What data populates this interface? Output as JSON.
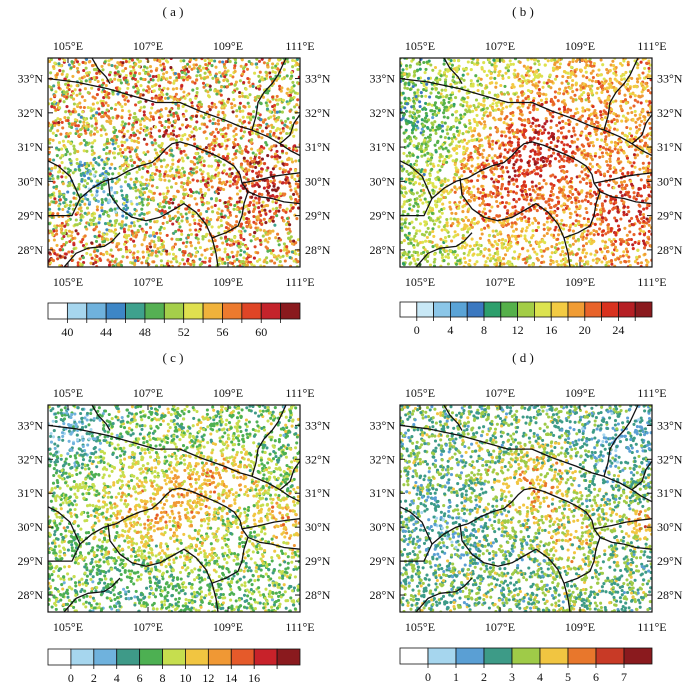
{
  "extent": {
    "lon_min": 104.5,
    "lon_max": 110.8,
    "lat_min": 27.5,
    "lat_max": 33.6
  },
  "lon_ticks": [
    {
      "value": 105,
      "label": "105°E"
    },
    {
      "value": 107,
      "label": "107°E"
    },
    {
      "value": 109,
      "label": "109°E"
    },
    {
      "value": 111,
      "label": "111°E"
    }
  ],
  "lat_ticks": [
    {
      "value": 28,
      "label": "28°N"
    },
    {
      "value": 29,
      "label": "29°N"
    },
    {
      "value": 30,
      "label": "30°N"
    },
    {
      "value": 31,
      "label": "31°N"
    },
    {
      "value": 32,
      "label": "32°N"
    },
    {
      "value": 33,
      "label": "33°N"
    }
  ],
  "boundaries": [
    [
      [
        104.5,
        33.0
      ],
      [
        105.2,
        32.9
      ],
      [
        106.0,
        32.7
      ],
      [
        106.6,
        32.5
      ],
      [
        107.2,
        32.3
      ],
      [
        107.8,
        32.3
      ],
      [
        108.3,
        32.05
      ],
      [
        108.9,
        31.8
      ],
      [
        109.3,
        31.6
      ],
      [
        109.6,
        31.5
      ],
      [
        110.0,
        31.3
      ],
      [
        110.3,
        31.1
      ],
      [
        110.55,
        30.9
      ],
      [
        110.8,
        30.75
      ]
    ],
    [
      [
        104.5,
        29.0
      ],
      [
        105.1,
        29.0
      ],
      [
        105.3,
        29.5
      ],
      [
        105.6,
        29.8
      ],
      [
        105.9,
        30.0
      ],
      [
        106.2,
        30.1
      ],
      [
        106.5,
        30.3
      ],
      [
        106.8,
        30.45
      ],
      [
        107.1,
        30.55
      ],
      [
        107.3,
        30.75
      ],
      [
        107.45,
        30.95
      ],
      [
        107.6,
        31.1
      ],
      [
        107.8,
        31.15
      ],
      [
        108.1,
        31.05
      ],
      [
        108.4,
        30.9
      ],
      [
        108.7,
        30.75
      ],
      [
        108.95,
        30.6
      ],
      [
        109.15,
        30.45
      ],
      [
        109.3,
        30.2
      ],
      [
        109.35,
        29.95
      ],
      [
        109.5,
        29.7
      ],
      [
        109.8,
        29.55
      ],
      [
        110.1,
        29.5
      ],
      [
        110.4,
        29.4
      ],
      [
        110.8,
        29.35
      ]
    ],
    [
      [
        106.0,
        30.1
      ],
      [
        106.05,
        29.6
      ],
      [
        106.3,
        29.2
      ],
      [
        106.6,
        28.95
      ],
      [
        106.95,
        28.85
      ],
      [
        107.3,
        28.95
      ],
      [
        107.6,
        29.15
      ],
      [
        107.9,
        29.35
      ],
      [
        108.2,
        29.1
      ],
      [
        108.45,
        28.75
      ],
      [
        108.6,
        28.35
      ],
      [
        108.7,
        27.9
      ],
      [
        108.75,
        27.5
      ]
    ],
    [
      [
        104.9,
        27.5
      ],
      [
        105.2,
        27.9
      ],
      [
        105.5,
        28.05
      ],
      [
        105.9,
        28.1
      ],
      [
        106.1,
        28.25
      ],
      [
        106.3,
        28.5
      ]
    ],
    [
      [
        108.6,
        28.35
      ],
      [
        108.95,
        28.5
      ],
      [
        109.25,
        28.7
      ],
      [
        109.35,
        29.0
      ],
      [
        109.4,
        29.35
      ],
      [
        109.5,
        29.7
      ]
    ],
    [
      [
        109.35,
        29.95
      ],
      [
        109.8,
        30.05
      ],
      [
        110.15,
        30.15
      ],
      [
        110.45,
        30.2
      ],
      [
        110.8,
        30.25
      ]
    ],
    [
      [
        109.6,
        31.5
      ],
      [
        109.7,
        31.9
      ],
      [
        109.75,
        32.3
      ],
      [
        109.9,
        32.6
      ],
      [
        110.1,
        32.85
      ],
      [
        110.25,
        33.1
      ],
      [
        110.45,
        33.6
      ]
    ],
    [
      [
        105.6,
        33.6
      ],
      [
        105.75,
        33.3
      ],
      [
        105.95,
        33.05
      ],
      [
        106.05,
        32.85
      ]
    ],
    [
      [
        110.3,
        31.1
      ],
      [
        110.55,
        31.35
      ],
      [
        110.65,
        31.7
      ],
      [
        110.8,
        31.95
      ]
    ],
    [
      [
        104.5,
        30.6
      ],
      [
        104.75,
        30.45
      ],
      [
        105.05,
        30.15
      ],
      [
        105.3,
        29.5
      ]
    ]
  ],
  "panels": [
    {
      "id": "a",
      "label": "( a )",
      "colors": [
        "#ffffff",
        "#a6d6ee",
        "#6fb2dd",
        "#3d86c6",
        "#3ea18d",
        "#55b053",
        "#a5cf4a",
        "#dfe04f",
        "#f0b23b",
        "#ec7a2e",
        "#df4526",
        "#c4232b",
        "#8a1a1e"
      ],
      "tick_labels": [
        {
          "pos": 1,
          "label": "40"
        },
        {
          "pos": 3,
          "label": "44"
        },
        {
          "pos": 5,
          "label": "48"
        },
        {
          "pos": 7,
          "label": "52"
        },
        {
          "pos": 9,
          "label": "56"
        },
        {
          "pos": 11,
          "label": "60"
        }
      ],
      "tick_positions": [
        1,
        2,
        3,
        4,
        5,
        6,
        7,
        8,
        9,
        10,
        11,
        12
      ],
      "hotspots": [
        {
          "lon": 109.9,
          "lat": 29.8,
          "r": 1.1,
          "w": 3.5
        },
        {
          "lon": 107.6,
          "lat": 31.7,
          "r": 1.0,
          "w": 1.5
        },
        {
          "lon": 105.6,
          "lat": 30.1,
          "r": 1.0,
          "w": -3.0
        },
        {
          "lon": 106.2,
          "lat": 29.4,
          "r": 0.7,
          "w": -2.5
        },
        {
          "lon": 104.9,
          "lat": 27.7,
          "r": 0.8,
          "w": 2.0
        }
      ],
      "base": 7.5,
      "noise": 3.8,
      "gradient": 0.0
    },
    {
      "id": "b",
      "label": "( b )",
      "colors": [
        "#ffffff",
        "#c8e8f6",
        "#8bc6e8",
        "#5aa3d6",
        "#3b78c0",
        "#2d9f6c",
        "#55b04a",
        "#a3cd46",
        "#dce34f",
        "#f3cb43",
        "#f09c34",
        "#e8632a",
        "#d8321f",
        "#b51f24",
        "#8a1a1e"
      ],
      "tick_labels": [
        {
          "pos": 1,
          "label": "0"
        },
        {
          "pos": 3,
          "label": "4"
        },
        {
          "pos": 5,
          "label": "8"
        },
        {
          "pos": 7,
          "label": "12"
        },
        {
          "pos": 9,
          "label": "16"
        },
        {
          "pos": 11,
          "label": "20"
        },
        {
          "pos": 13,
          "label": "24"
        }
      ],
      "tick_positions": [
        1,
        2,
        3,
        4,
        5,
        6,
        7,
        8,
        9,
        10,
        11,
        12,
        13,
        14
      ],
      "hotspots": [
        {
          "lon": 107.2,
          "lat": 30.0,
          "r": 1.6,
          "w": 3.5
        },
        {
          "lon": 108.2,
          "lat": 31.5,
          "r": 1.2,
          "w": 2.5
        },
        {
          "lon": 110.2,
          "lat": 29.2,
          "r": 1.0,
          "w": 2.5
        },
        {
          "lon": 105.2,
          "lat": 31.5,
          "r": 1.2,
          "w": -1.5
        }
      ],
      "base": 8.3,
      "noise": 2.2,
      "gradient": 0.5
    },
    {
      "id": "c",
      "label": "( c )",
      "colors": [
        "#ffffff",
        "#a6d6ee",
        "#6fb2dd",
        "#3e9a88",
        "#4db052",
        "#c6de4e",
        "#f1c541",
        "#f09834",
        "#e55a2a",
        "#c8222a",
        "#8a1a1e"
      ],
      "tick_labels": [
        {
          "pos": 1,
          "label": "0"
        },
        {
          "pos": 2,
          "label": "2"
        },
        {
          "pos": 3,
          "label": "4"
        },
        {
          "pos": 4,
          "label": "6"
        },
        {
          "pos": 5,
          "label": "8"
        },
        {
          "pos": 6,
          "label": "10"
        },
        {
          "pos": 7,
          "label": "12"
        },
        {
          "pos": 8,
          "label": "14"
        },
        {
          "pos": 9,
          "label": "16"
        }
      ],
      "tick_positions": [
        1,
        2,
        3,
        4,
        5,
        6,
        7,
        8,
        9,
        10
      ],
      "hotspots": [
        {
          "lon": 107.3,
          "lat": 30.4,
          "r": 1.4,
          "w": 2.2
        },
        {
          "lon": 108.8,
          "lat": 31.5,
          "r": 0.8,
          "w": 2.0
        },
        {
          "lon": 110.4,
          "lat": 30.2,
          "r": 0.7,
          "w": 2.5
        },
        {
          "lon": 105.0,
          "lat": 32.8,
          "r": 0.9,
          "w": -2.5
        },
        {
          "lon": 106.5,
          "lat": 28.2,
          "r": 1.0,
          "w": -1.0
        }
      ],
      "base": 4.3,
      "noise": 1.6,
      "gradient": 0.0
    },
    {
      "id": "d",
      "label": "( d )",
      "colors": [
        "#ffffff",
        "#a6d6ee",
        "#5a9fd4",
        "#3d9b87",
        "#9fcb48",
        "#f1c541",
        "#e8772c",
        "#c83a26",
        "#8a1a1e"
      ],
      "tick_labels": [
        {
          "pos": 1,
          "label": "0"
        },
        {
          "pos": 2,
          "label": "1"
        },
        {
          "pos": 3,
          "label": "2"
        },
        {
          "pos": 4,
          "label": "3"
        },
        {
          "pos": 5,
          "label": "4"
        },
        {
          "pos": 6,
          "label": "5"
        },
        {
          "pos": 7,
          "label": "6"
        },
        {
          "pos": 8,
          "label": "7"
        }
      ],
      "tick_positions": [
        1,
        2,
        3,
        4,
        5,
        6,
        7,
        8
      ],
      "hotspots": [
        {
          "lon": 107.8,
          "lat": 31.2,
          "r": 1.0,
          "w": 1.8
        },
        {
          "lon": 108.8,
          "lat": 29.6,
          "r": 0.8,
          "w": 1.2
        },
        {
          "lon": 110.5,
          "lat": 30.1,
          "r": 0.5,
          "w": 2.0
        },
        {
          "lon": 105.5,
          "lat": 30.0,
          "r": 1.0,
          "w": -1.0
        },
        {
          "lon": 110.0,
          "lat": 32.5,
          "r": 1.1,
          "w": -1.0
        }
      ],
      "base": 3.5,
      "noise": 1.4,
      "gradient": 0.0
    }
  ]
}
